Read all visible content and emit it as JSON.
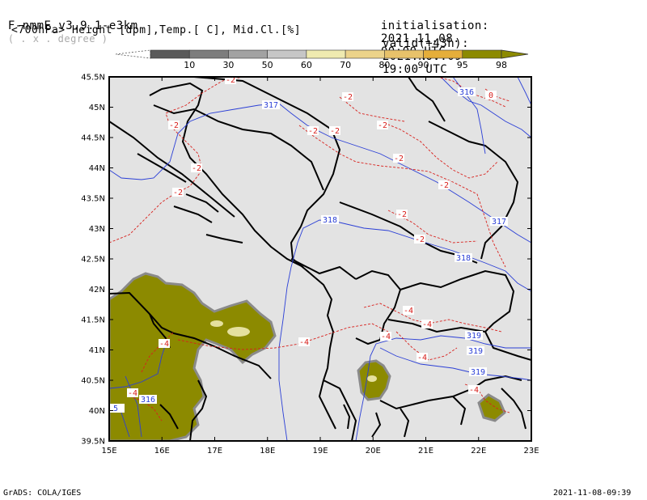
{
  "header": {
    "model": "F-nmmE_v3.9.1-e3km",
    "unit_note": "( . x . degree )",
    "init_label": "initialisation:",
    "init_date": "2021.11.08.",
    "init_time": "00:00 UTC",
    "subtitle": "<700hPa> Height [dpm],Temp.[ C], Mid.Cl.[%]",
    "valid_label": "valid(+43h):",
    "valid_date": "2021.NOV.09",
    "valid_time": "19:00 UTC"
  },
  "legend": {
    "labels": [
      "10",
      "30",
      "50",
      "60",
      "70",
      "80",
      "90",
      "95",
      "98"
    ],
    "colors": [
      "#5a5a5a",
      "#7d7d7d",
      "#a2a2a2",
      "#c6c6c6",
      "#efeab0",
      "#ecd38a",
      "#e8c26a",
      "#e5ae3a",
      "#8c8a00"
    ]
  },
  "axes": {
    "lat_labels": [
      "45.5N",
      "45N",
      "44.5N",
      "44N",
      "43.5N",
      "43N",
      "42.5N",
      "42N",
      "41.5N",
      "41N",
      "40.5N",
      "40N",
      "39.5N"
    ],
    "lon_labels": [
      "15E",
      "16E",
      "17E",
      "18E",
      "19E",
      "20E",
      "21E",
      "22E",
      "23E"
    ]
  },
  "contours": {
    "height_labels": [
      "317",
      "316",
      "318",
      "318",
      "317",
      "319",
      "319",
      "319",
      "316",
      "5"
    ],
    "temp_labels": [
      "-2",
      "-2",
      "-2",
      "-2",
      "-2",
      "-2",
      "-2",
      "-2",
      "-2",
      "-2",
      "-2",
      "-2",
      "0",
      "-4",
      "-4",
      "-4",
      "-4",
      "-4",
      "-4",
      "-4",
      "-4"
    ]
  },
  "footer": {
    "left": "GrADS: COLA/IGES",
    "right": "2021-11-08-09:39"
  },
  "colors": {
    "land": "#e3e3e3",
    "coast": "#000000",
    "height_contour": "#2b3fd6",
    "temp_contour": "#d8201c",
    "cloud_98": "#8c8a00"
  }
}
